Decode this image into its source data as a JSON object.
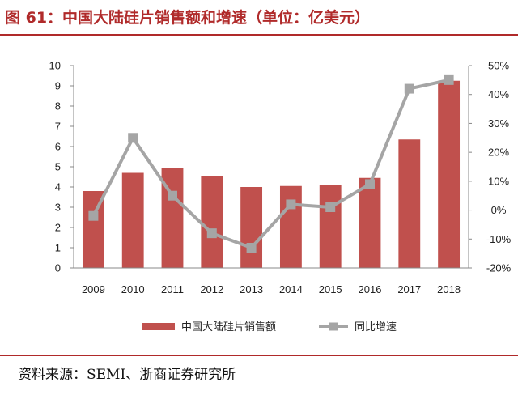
{
  "figure": {
    "title": "图 61：中国大陆硅片销售额和增速（单位：亿美元）",
    "source": "资料来源：SEMI、浙商证券研究所"
  },
  "colors": {
    "bar": "#c0504d",
    "line": "#a5a5a5",
    "accent": "#b02a2a"
  },
  "chart_data": {
    "type": "bar",
    "categories": [
      "2009",
      "2010",
      "2011",
      "2012",
      "2013",
      "2014",
      "2015",
      "2016",
      "2017",
      "2018"
    ],
    "series": [
      {
        "name": "中国大陆硅片销售额",
        "type": "bar",
        "axis": "left",
        "values": [
          3.8,
          4.7,
          4.95,
          4.55,
          4.0,
          4.05,
          4.1,
          4.45,
          6.35,
          9.25
        ]
      },
      {
        "name": "同比增速",
        "type": "line",
        "axis": "right",
        "values": [
          -2,
          25,
          5,
          -8,
          -13,
          2,
          1,
          9,
          42,
          45
        ]
      }
    ],
    "ylim": [
      0,
      10
    ],
    "yticks": [
      "0",
      "1",
      "2",
      "3",
      "4",
      "5",
      "6",
      "7",
      "8",
      "9",
      "10"
    ],
    "y2lim": [
      -20,
      50
    ],
    "y2ticks": [
      "-20%",
      "-10%",
      "0%",
      "10%",
      "20%",
      "30%",
      "40%",
      "50%"
    ],
    "legend": "bottom",
    "grid": false
  }
}
